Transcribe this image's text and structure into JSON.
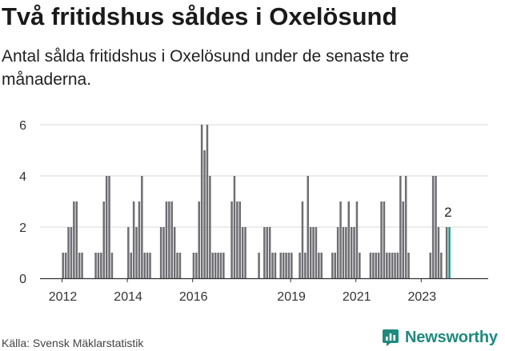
{
  "header": {
    "title": "Två fritidshus såldes i Oxelösund",
    "subtitle": "Antal sålda fritidshus i Oxelösund under de senaste tre månaderna."
  },
  "footer": {
    "source": "Källa: Svensk Mäklarstatistik",
    "brand": "Newsworthy",
    "brand_icon": "bar-chart-logo-icon"
  },
  "colors": {
    "bar": "#6e6e73",
    "highlight": "#1f9488",
    "grid": "#d9d9d9",
    "axis": "#333333",
    "brand": "#1f8a7e"
  },
  "chart_data": {
    "type": "bar",
    "title": "Två fritidshus såldes i Oxelösund",
    "ylim": [
      0,
      6
    ],
    "yticks": [
      0,
      2,
      4,
      6
    ],
    "x_start": "2012-01",
    "frequency": "monthly",
    "xtick_labels": [
      "2012",
      "2014",
      "2016",
      "2019",
      "2021",
      "2023"
    ],
    "xtick_months": [
      "2012-01",
      "2014-01",
      "2016-01",
      "2019-01",
      "2021-01",
      "2023-01"
    ],
    "grid": true,
    "legend": "none",
    "highlight_label": "2",
    "values": [
      1,
      1,
      2,
      2,
      3,
      3,
      1,
      1,
      0,
      0,
      0,
      0,
      1,
      1,
      1,
      3,
      4,
      4,
      1,
      0,
      0,
      0,
      0,
      0,
      2,
      1,
      3,
      2,
      3,
      4,
      1,
      1,
      1,
      0,
      0,
      0,
      2,
      2,
      3,
      3,
      3,
      2,
      1,
      1,
      0,
      0,
      0,
      0,
      1,
      1,
      3,
      6,
      5,
      6,
      4,
      1,
      1,
      1,
      1,
      1,
      0,
      0,
      3,
      4,
      3,
      3,
      2,
      2,
      0,
      0,
      0,
      0,
      1,
      0,
      2,
      2,
      2,
      1,
      1,
      0,
      1,
      1,
      1,
      1,
      1,
      0,
      0,
      1,
      3,
      1,
      4,
      2,
      2,
      2,
      1,
      1,
      0,
      0,
      0,
      1,
      1,
      2,
      3,
      2,
      2,
      3,
      2,
      2,
      3,
      1,
      0,
      0,
      0,
      1,
      1,
      1,
      1,
      3,
      3,
      1,
      1,
      1,
      1,
      1,
      4,
      3,
      4,
      1,
      0,
      0,
      0,
      0,
      0,
      0,
      0,
      1,
      4,
      4,
      2,
      1,
      0,
      2,
      2
    ]
  }
}
